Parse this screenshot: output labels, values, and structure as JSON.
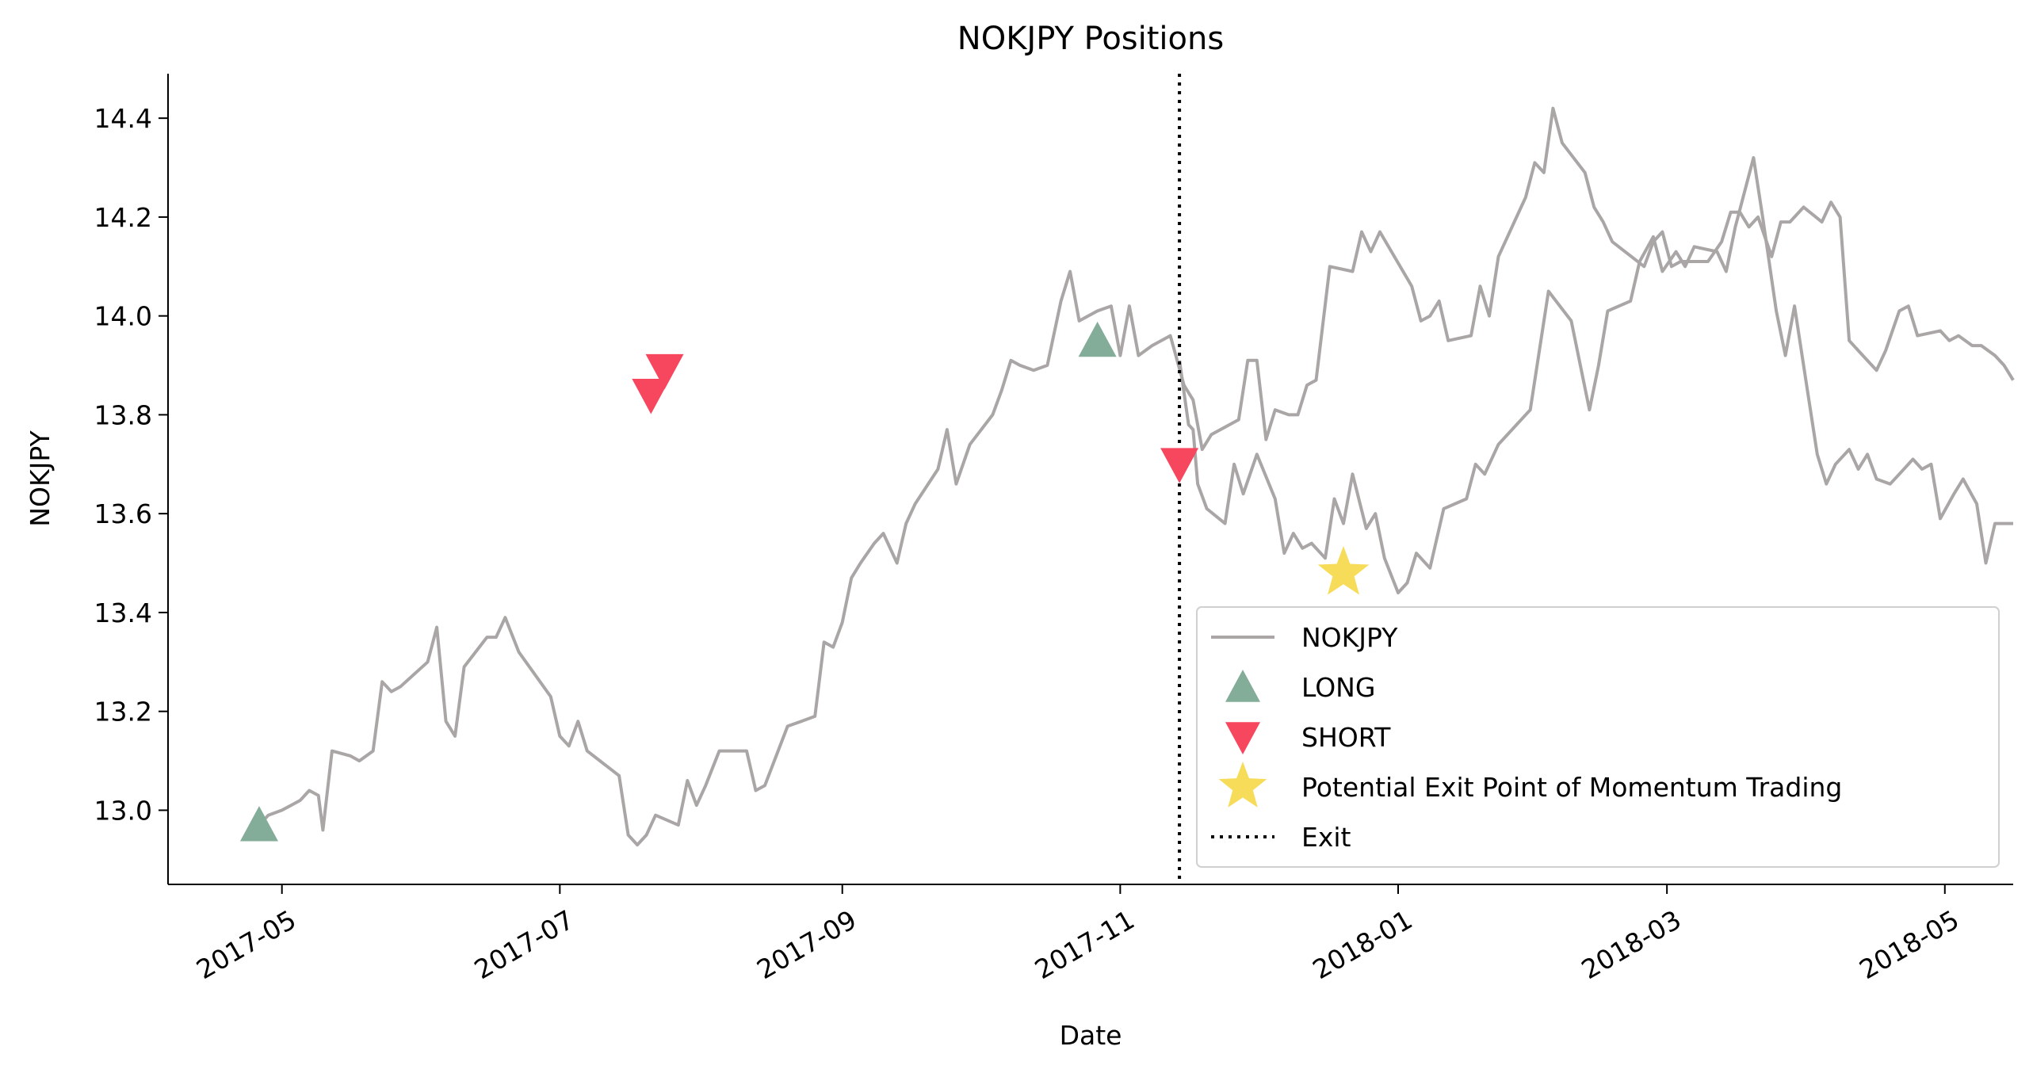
{
  "chart_data": {
    "type": "line",
    "title": "NOKJPY Positions",
    "xlabel": "Date",
    "ylabel": "NOKJPY",
    "x_range": [
      "2017-04-06",
      "2018-05-16"
    ],
    "y_range": [
      12.85,
      14.49
    ],
    "x_ticks": [
      "2017-05",
      "2017-07",
      "2017-09",
      "2017-11",
      "2018-01",
      "2018-03",
      "2018-05"
    ],
    "y_ticks": [
      "13.0",
      "13.2",
      "13.4",
      "13.6",
      "13.8",
      "14.0",
      "14.2",
      "14.4"
    ],
    "grid": false,
    "legend_position": "bottom-right",
    "colors": {
      "price": "#aaa6a6",
      "long": "#83ad99",
      "short": "#f6475f",
      "exit_point": "#f6d847",
      "exit_line": "#000000"
    },
    "series": [
      {
        "name": "NOKJPY",
        "kind": "line",
        "points": [
          [
            "2017-04-26",
            12.97
          ],
          [
            "2017-04-28",
            12.99
          ],
          [
            "2017-05-01",
            13.0
          ],
          [
            "2017-05-03",
            13.01
          ],
          [
            "2017-05-05",
            13.02
          ],
          [
            "2017-05-07",
            13.04
          ],
          [
            "2017-05-09",
            13.03
          ],
          [
            "2017-05-10",
            12.96
          ],
          [
            "2017-05-12",
            13.12
          ],
          [
            "2017-05-16",
            13.11
          ],
          [
            "2017-05-18",
            13.1
          ],
          [
            "2017-05-21",
            13.12
          ],
          [
            "2017-05-23",
            13.26
          ],
          [
            "2017-05-25",
            13.24
          ],
          [
            "2017-05-27",
            13.25
          ],
          [
            "2017-06-02",
            13.3
          ],
          [
            "2017-06-04",
            13.37
          ],
          [
            "2017-06-06",
            13.18
          ],
          [
            "2017-06-08",
            13.15
          ],
          [
            "2017-06-10",
            13.29
          ],
          [
            "2017-06-15",
            13.35
          ],
          [
            "2017-06-17",
            13.35
          ],
          [
            "2017-06-19",
            13.39
          ],
          [
            "2017-06-22",
            13.32
          ],
          [
            "2017-06-29",
            13.23
          ],
          [
            "2017-07-01",
            13.15
          ],
          [
            "2017-07-03",
            13.13
          ],
          [
            "2017-07-05",
            13.18
          ],
          [
            "2017-07-07",
            13.12
          ],
          [
            "2017-07-14",
            13.07
          ],
          [
            "2017-07-16",
            12.95
          ],
          [
            "2017-07-18",
            12.93
          ],
          [
            "2017-07-20",
            12.95
          ],
          [
            "2017-07-22",
            12.99
          ],
          [
            "2017-07-27",
            12.97
          ],
          [
            "2017-07-29",
            13.06
          ],
          [
            "2017-07-31",
            13.01
          ],
          [
            "2017-08-02",
            13.05
          ],
          [
            "2017-08-05",
            13.12
          ],
          [
            "2017-08-11",
            13.12
          ],
          [
            "2017-08-13",
            13.04
          ],
          [
            "2017-08-15",
            13.05
          ],
          [
            "2017-08-20",
            13.17
          ],
          [
            "2017-08-23",
            13.18
          ],
          [
            "2017-08-26",
            13.19
          ],
          [
            "2017-08-28",
            13.34
          ],
          [
            "2017-08-30",
            13.33
          ],
          [
            "2017-09-01",
            13.38
          ],
          [
            "2017-09-03",
            13.47
          ],
          [
            "2017-09-05",
            13.5
          ],
          [
            "2017-09-08",
            13.54
          ],
          [
            "2017-09-10",
            13.56
          ],
          [
            "2017-09-13",
            13.5
          ],
          [
            "2017-09-15",
            13.58
          ],
          [
            "2017-09-17",
            13.62
          ],
          [
            "2017-09-22",
            13.69
          ],
          [
            "2017-09-24",
            13.77
          ],
          [
            "2017-09-26",
            13.66
          ],
          [
            "2017-09-29",
            13.74
          ],
          [
            "2017-10-04",
            13.8
          ],
          [
            "2017-10-06",
            13.85
          ],
          [
            "2017-10-08",
            13.91
          ],
          [
            "2017-10-10",
            13.9
          ],
          [
            "2017-10-13",
            13.89
          ],
          [
            "2017-10-16",
            13.9
          ],
          [
            "2017-10-19",
            14.03
          ],
          [
            "2017-10-21",
            14.09
          ],
          [
            "2017-10-23",
            13.99
          ],
          [
            "2017-10-27",
            14.01
          ],
          [
            "2017-10-30",
            14.02
          ],
          [
            "2017-11-01",
            13.92
          ],
          [
            "2017-11-03",
            14.02
          ],
          [
            "2017-11-05",
            13.92
          ],
          [
            "2017-11-08",
            13.94
          ],
          [
            "2017-11-12",
            13.96
          ],
          [
            "2017-11-15",
            13.86
          ],
          [
            "2017-11-17",
            13.83
          ],
          [
            "2017-11-19",
            13.73
          ],
          [
            "2017-11-21",
            13.76
          ],
          [
            "2017-11-27",
            13.79
          ],
          [
            "2017-11-29",
            13.91
          ],
          [
            "2017-12-01",
            13.91
          ],
          [
            "2017-12-03",
            13.75
          ],
          [
            "2017-12-05",
            13.81
          ],
          [
            "2017-12-08",
            13.8
          ],
          [
            "2017-12-10",
            13.8
          ],
          [
            "2017-12-12",
            13.86
          ],
          [
            "2017-12-14",
            13.87
          ],
          [
            "2017-12-17",
            14.1
          ],
          [
            "2017-12-22",
            14.09
          ],
          [
            "2017-12-24",
            14.17
          ],
          [
            "2017-12-26",
            14.13
          ],
          [
            "2017-12-28",
            14.17
          ],
          [
            "2018-01-04",
            14.06
          ],
          [
            "2018-01-06",
            13.99
          ],
          [
            "2018-01-08",
            14.0
          ],
          [
            "2018-01-10",
            14.03
          ],
          [
            "2018-01-12",
            13.95
          ],
          [
            "2018-01-17",
            13.96
          ],
          [
            "2018-01-19",
            14.06
          ],
          [
            "2018-01-21",
            14.0
          ],
          [
            "2018-01-23",
            14.12
          ],
          [
            "2018-01-29",
            14.24
          ],
          [
            "2018-01-31",
            14.31
          ],
          [
            "2018-02-02",
            14.29
          ],
          [
            "2018-02-04",
            14.42
          ],
          [
            "2018-02-06",
            14.35
          ],
          [
            "2018-02-11",
            14.29
          ],
          [
            "2018-02-13",
            14.22
          ],
          [
            "2018-02-15",
            14.19
          ],
          [
            "2018-02-17",
            14.15
          ],
          [
            "2018-02-24",
            14.1
          ],
          [
            "2018-02-26",
            14.15
          ],
          [
            "2018-02-28",
            14.17
          ],
          [
            "2018-03-02",
            14.1
          ],
          [
            "2018-03-04",
            14.11
          ],
          [
            "2018-03-10",
            14.11
          ],
          [
            "2018-03-13",
            14.15
          ],
          [
            "2018-03-15",
            14.21
          ],
          [
            "2018-03-17",
            14.21
          ],
          [
            "2018-03-19",
            14.18
          ],
          [
            "2018-03-21",
            14.2
          ],
          [
            "2018-03-24",
            14.12
          ],
          [
            "2018-03-26",
            14.19
          ],
          [
            "2018-03-28",
            14.19
          ],
          [
            "2018-03-31",
            14.22
          ],
          [
            "2018-04-04",
            14.19
          ],
          [
            "2018-04-06",
            14.23
          ],
          [
            "2018-04-08",
            14.2
          ],
          [
            "2018-04-10",
            13.95
          ],
          [
            "2018-04-13",
            13.92
          ],
          [
            "2018-04-16",
            13.89
          ],
          [
            "2018-04-18",
            13.93
          ],
          [
            "2018-04-21",
            14.01
          ],
          [
            "2018-04-23",
            14.02
          ],
          [
            "2018-04-25",
            13.96
          ],
          [
            "2018-04-30",
            13.97
          ],
          [
            "2018-05-02",
            13.95
          ],
          [
            "2018-05-04",
            13.96
          ],
          [
            "2018-05-07",
            13.94
          ],
          [
            "2018-05-09",
            13.94
          ],
          [
            "2018-05-12",
            13.92
          ],
          [
            "2018-05-14",
            13.9
          ],
          [
            "2018-05-16",
            13.87
          ]
        ]
      },
      {
        "name": "NOKJPY",
        "kind": "line",
        "points": [
          [
            "2017-11-14",
            13.91
          ],
          [
            "2017-11-16",
            13.78
          ],
          [
            "2017-11-17",
            13.77
          ],
          [
            "2017-11-18",
            13.66
          ],
          [
            "2017-11-20",
            13.61
          ],
          [
            "2017-11-24",
            13.58
          ],
          [
            "2017-11-26",
            13.7
          ],
          [
            "2017-11-28",
            13.64
          ],
          [
            "2017-12-01",
            13.72
          ],
          [
            "2017-12-05",
            13.63
          ],
          [
            "2017-12-07",
            13.52
          ],
          [
            "2017-12-09",
            13.56
          ],
          [
            "2017-12-11",
            13.53
          ],
          [
            "2017-12-13",
            13.54
          ],
          [
            "2017-12-16",
            13.51
          ],
          [
            "2017-12-18",
            13.63
          ],
          [
            "2017-12-20",
            13.58
          ],
          [
            "2017-12-22",
            13.68
          ],
          [
            "2017-12-25",
            13.57
          ],
          [
            "2017-12-27",
            13.6
          ],
          [
            "2017-12-29",
            13.51
          ],
          [
            "2018-01-01",
            13.44
          ],
          [
            "2018-01-03",
            13.46
          ],
          [
            "2018-01-05",
            13.52
          ],
          [
            "2018-01-08",
            13.49
          ],
          [
            "2018-01-11",
            13.61
          ],
          [
            "2018-01-16",
            13.63
          ],
          [
            "2018-01-18",
            13.7
          ],
          [
            "2018-01-20",
            13.68
          ],
          [
            "2018-01-23",
            13.74
          ],
          [
            "2018-01-30",
            13.81
          ],
          [
            "2018-02-01",
            13.93
          ],
          [
            "2018-02-03",
            14.05
          ],
          [
            "2018-02-08",
            13.99
          ],
          [
            "2018-02-12",
            13.81
          ],
          [
            "2018-02-14",
            13.9
          ],
          [
            "2018-02-16",
            14.01
          ],
          [
            "2018-02-21",
            14.03
          ],
          [
            "2018-02-23",
            14.11
          ],
          [
            "2018-02-26",
            14.16
          ],
          [
            "2018-02-28",
            14.09
          ],
          [
            "2018-03-03",
            14.13
          ],
          [
            "2018-03-05",
            14.1
          ],
          [
            "2018-03-07",
            14.14
          ],
          [
            "2018-03-12",
            14.13
          ],
          [
            "2018-03-14",
            14.09
          ],
          [
            "2018-03-16",
            14.18
          ],
          [
            "2018-03-20",
            14.32
          ],
          [
            "2018-03-22",
            14.2
          ],
          [
            "2018-03-25",
            14.01
          ],
          [
            "2018-03-27",
            13.92
          ],
          [
            "2018-03-29",
            14.02
          ],
          [
            "2018-04-01",
            13.84
          ],
          [
            "2018-04-03",
            13.72
          ],
          [
            "2018-04-05",
            13.66
          ],
          [
            "2018-04-07",
            13.7
          ],
          [
            "2018-04-10",
            13.73
          ],
          [
            "2018-04-12",
            13.69
          ],
          [
            "2018-04-14",
            13.72
          ],
          [
            "2018-04-16",
            13.67
          ],
          [
            "2018-04-19",
            13.66
          ],
          [
            "2018-04-21",
            13.68
          ],
          [
            "2018-04-24",
            13.71
          ],
          [
            "2018-04-26",
            13.69
          ],
          [
            "2018-04-28",
            13.7
          ],
          [
            "2018-04-30",
            13.59
          ],
          [
            "2018-05-03",
            13.64
          ],
          [
            "2018-05-05",
            13.67
          ],
          [
            "2018-05-08",
            13.62
          ],
          [
            "2018-05-10",
            13.5
          ],
          [
            "2018-05-12",
            13.58
          ],
          [
            "2018-05-16",
            13.58
          ]
        ]
      }
    ],
    "markers": [
      {
        "name": "LONG",
        "shape": "triangle-up",
        "points": [
          [
            "2017-04-26",
            12.97
          ],
          [
            "2017-10-27",
            13.95
          ]
        ]
      },
      {
        "name": "SHORT",
        "shape": "triangle-down",
        "points": [
          [
            "2017-07-21",
            13.84
          ],
          [
            "2017-07-24",
            13.89
          ],
          [
            "2017-11-14",
            13.7
          ]
        ]
      },
      {
        "name": "Potential Exit Point of Momentum Trading",
        "shape": "star",
        "points": [
          [
            "2017-12-20",
            13.48
          ]
        ]
      }
    ],
    "vlines": [
      {
        "name": "Exit",
        "x": "2017-11-14",
        "style": "dotted"
      }
    ],
    "legend": {
      "entries": [
        {
          "label": "NOKJPY",
          "symbol": "line"
        },
        {
          "label": "LONG",
          "symbol": "triangle-up"
        },
        {
          "label": "SHORT",
          "symbol": "triangle-down"
        },
        {
          "label": "Potential Exit Point of Momentum Trading",
          "symbol": "star"
        },
        {
          "label": "Exit",
          "symbol": "dotted-line"
        }
      ]
    }
  }
}
